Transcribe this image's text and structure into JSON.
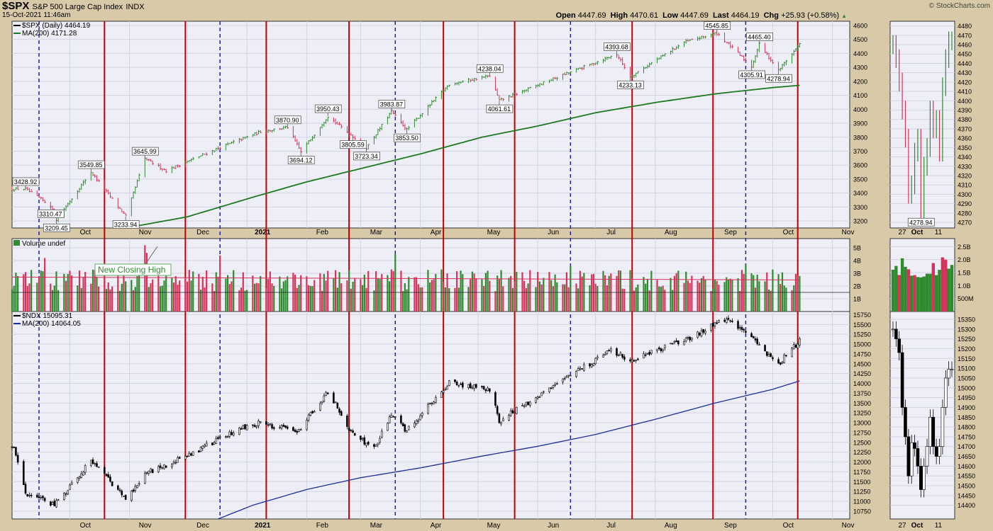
{
  "header": {
    "symbol": "$SPX",
    "description": "S&P 500 Large Cap Index",
    "exchange": "INDX",
    "date": "15-Oct-2021 11:46am",
    "brand": "© StockCharts.com",
    "quote": {
      "open_label": "Open",
      "open": "4447.69",
      "high_label": "High",
      "high": "4470.61",
      "low_label": "Low",
      "low": "4447.69",
      "last_label": "Last",
      "last": "4464.19",
      "chg_label": "Chg",
      "chg": "+25.93 (+0.58%)"
    }
  },
  "colors": {
    "background": "#d8c9a8",
    "panel": "#eeeef7",
    "grid": "#d3d3e6",
    "up": "#2e8b2e",
    "down": "#d6335a",
    "ma_spx": "#1e7a1e",
    "ma_ndx": "#1f2f9a",
    "vline_red": "#c00000",
    "vline_blue": "#1f1fa8"
  },
  "panels": {
    "spx": {
      "legend_symbol": "$SPX (Daily) 4464.19",
      "legend_ma": "MA(200) 4171.28"
    },
    "volume": {
      "legend": "Volume undef",
      "annotation": "New Closing High"
    },
    "ndx": {
      "legend_symbol": "$NDX 15095.31",
      "legend_ma": "MA(200) 14064.05"
    }
  },
  "chart_data": [
    {
      "type": "line",
      "name": "$SPX daily price",
      "x_months": [
        "Oct",
        "Nov",
        "Dec",
        "2021",
        "Feb",
        "Mar",
        "Apr",
        "May",
        "Jun",
        "Jul",
        "Aug",
        "Sep",
        "Oct",
        "Nov"
      ],
      "ylim": [
        3150,
        4630
      ],
      "y_ticks": [
        3200,
        3300,
        3400,
        3500,
        3600,
        3700,
        3800,
        3900,
        4000,
        4100,
        4200,
        4300,
        4400,
        4500,
        4600
      ],
      "series": [
        {
          "name": "$SPX (Daily)",
          "anchors": [
            [
              "2020-09-21",
              3310.47
            ],
            [
              "2020-09-08",
              3428.92
            ],
            [
              "2020-09-24",
              3209.45
            ],
            [
              "2020-10-12",
              3549.85
            ],
            [
              "2020-10-30",
              3233.94
            ],
            [
              "2020-11-09",
              3645.99
            ],
            [
              "2020-11-20",
              3560
            ],
            [
              "2020-12-17",
              3720
            ],
            [
              "2021-01-08",
              3840
            ],
            [
              "2021-01-22",
              3870.9
            ],
            [
              "2021-01-29",
              3694.12
            ],
            [
              "2021-02-12",
              3950.43
            ],
            [
              "2021-03-04",
              3723.34
            ],
            [
              "2021-02-25",
              3805.59
            ],
            [
              "2021-03-17",
              3983.87
            ],
            [
              "2021-03-25",
              3853.5
            ],
            [
              "2021-04-16",
              4180
            ],
            [
              "2021-05-07",
              4238.04
            ],
            [
              "2021-05-12",
              4061.61
            ],
            [
              "2021-06-15",
              4250
            ],
            [
              "2021-07-12",
              4393.68
            ],
            [
              "2021-07-19",
              4233.13
            ],
            [
              "2021-08-16",
              4480
            ],
            [
              "2021-09-02",
              4545.85
            ],
            [
              "2021-09-20",
              4305.91
            ],
            [
              "2021-09-24",
              4465.4
            ],
            [
              "2021-10-04",
              4278.94
            ],
            [
              "2021-10-15",
              4464.19
            ]
          ]
        },
        {
          "name": "MA(200)",
          "anchors": [
            [
              "2020-10-30",
              3150
            ],
            [
              "2020-12-01",
              3230
            ],
            [
              "2021-01-04",
              3370
            ],
            [
              "2021-02-01",
              3480
            ],
            [
              "2021-03-01",
              3575
            ],
            [
              "2021-04-01",
              3680
            ],
            [
              "2021-05-03",
              3800
            ],
            [
              "2021-06-01",
              3880
            ],
            [
              "2021-07-01",
              3975
            ],
            [
              "2021-08-02",
              4050
            ],
            [
              "2021-09-01",
              4110
            ],
            [
              "2021-10-01",
              4155
            ],
            [
              "2021-10-15",
              4171.28
            ]
          ]
        }
      ],
      "annotations": [
        [
          "2020-09-08",
          3428.92,
          "3428.92",
          "above"
        ],
        [
          "2020-09-21",
          3310.47,
          "3310.47",
          "below"
        ],
        [
          "2020-09-24",
          3209.45,
          "3209.45",
          "below"
        ],
        [
          "2020-10-12",
          3549.85,
          "3549.85",
          "above"
        ],
        [
          "2020-10-30",
          3233.94,
          "3233.94",
          "below"
        ],
        [
          "2020-11-09",
          3645.99,
          "3645.99",
          "above"
        ],
        [
          "2021-01-22",
          3870.9,
          "3870.90",
          "above"
        ],
        [
          "2021-01-29",
          3694.12,
          "3694.12",
          "below"
        ],
        [
          "2021-02-12",
          3950.43,
          "3950.43",
          "above"
        ],
        [
          "2021-02-25",
          3805.59,
          "3805.59",
          "below"
        ],
        [
          "2021-03-04",
          3723.34,
          "3723.34",
          "below"
        ],
        [
          "2021-03-17",
          3983.87,
          "3983.87",
          "above"
        ],
        [
          "2021-03-25",
          3853.5,
          "3853.50",
          "below"
        ],
        [
          "2021-05-07",
          4238.04,
          "4238.04",
          "above"
        ],
        [
          "2021-05-12",
          4061.61,
          "4061.61",
          "below"
        ],
        [
          "2021-07-12",
          4393.68,
          "4393.68",
          "above"
        ],
        [
          "2021-07-19",
          4233.13,
          "4233.13",
          "below"
        ],
        [
          "2021-09-02",
          4545.85,
          "4545.85",
          "above"
        ],
        [
          "2021-09-20",
          4305.91,
          "4305.91",
          "below"
        ],
        [
          "2021-09-24",
          4465.4,
          "4465.40",
          "above"
        ],
        [
          "2021-10-04",
          4278.94,
          "4278.94",
          "below"
        ]
      ]
    },
    {
      "type": "bar",
      "name": "Volume",
      "y_ticks": [
        {
          "label": "1B",
          "value": 1000000000
        },
        {
          "label": "2B",
          "value": 2000000000
        },
        {
          "label": "3B",
          "value": 3000000000
        },
        {
          "label": "4B",
          "value": 4000000000
        },
        {
          "label": "5B",
          "value": 5000000000
        }
      ],
      "ylim": [
        0,
        5500000000
      ],
      "average_line": 2700000000,
      "spikes": [
        [
          "2020-09-18",
          4200000000
        ],
        [
          "2020-11-09",
          5200000000
        ],
        [
          "2020-11-10",
          4600000000
        ],
        [
          "2020-12-18",
          4400000000
        ],
        [
          "2021-03-19",
          4500000000
        ],
        [
          "2021-06-18",
          3600000000
        ],
        [
          "2021-09-17",
          3700000000
        ]
      ],
      "typical_range": [
        1600000000,
        3300000000
      ]
    },
    {
      "type": "line",
      "name": "$NDX daily price",
      "ylim": [
        10550,
        15830
      ],
      "y_ticks": [
        10750,
        11000,
        11250,
        11500,
        11750,
        12000,
        12250,
        12500,
        12750,
        13000,
        13250,
        13500,
        13750,
        14000,
        14250,
        14500,
        14750,
        15000,
        15250,
        15500,
        15750
      ],
      "series": [
        {
          "name": "$NDX",
          "anchors": [
            [
              "2020-09-02",
              12400
            ],
            [
              "2020-09-08",
              11200
            ],
            [
              "2020-09-23",
              10900
            ],
            [
              "2020-10-12",
              12050
            ],
            [
              "2020-10-30",
              11050
            ],
            [
              "2020-11-09",
              11700
            ],
            [
              "2020-12-01",
              12150
            ],
            [
              "2020-12-28",
              12850
            ],
            [
              "2021-01-08",
              13000
            ],
            [
              "2021-01-27",
              12750
            ],
            [
              "2021-02-12",
              13800
            ],
            [
              "2021-02-25",
              12700
            ],
            [
              "2021-03-08",
              12350
            ],
            [
              "2021-03-17",
              13200
            ],
            [
              "2021-03-25",
              12800
            ],
            [
              "2021-04-16",
              14000
            ],
            [
              "2021-05-07",
              13850
            ],
            [
              "2021-05-12",
              13050
            ],
            [
              "2021-06-15",
              14100
            ],
            [
              "2021-07-09",
              14850
            ],
            [
              "2021-07-19",
              14600
            ],
            [
              "2021-08-16",
              15100
            ],
            [
              "2021-09-07",
              15650
            ],
            [
              "2021-09-20",
              15150
            ],
            [
              "2021-10-04",
              14500
            ],
            [
              "2021-10-15",
              15095.31
            ]
          ]
        },
        {
          "name": "MA(200)",
          "anchors": [
            [
              "2020-12-17",
              10550
            ],
            [
              "2021-01-04",
              10900
            ],
            [
              "2021-02-01",
              11300
            ],
            [
              "2021-03-01",
              11600
            ],
            [
              "2021-04-01",
              11850
            ],
            [
              "2021-05-03",
              12150
            ],
            [
              "2021-06-01",
              12400
            ],
            [
              "2021-07-01",
              12700
            ],
            [
              "2021-08-02",
              13100
            ],
            [
              "2021-09-01",
              13500
            ],
            [
              "2021-10-01",
              13850
            ],
            [
              "2021-10-15",
              14064.05
            ]
          ]
        }
      ]
    },
    {
      "type": "line",
      "name": "$SPX inset",
      "x_ticks": [
        "27",
        "Oct",
        "11"
      ],
      "y_ticks": [
        4270,
        4280,
        4290,
        4300,
        4310,
        4320,
        4330,
        4340,
        4350,
        4360,
        4370,
        4380,
        4390,
        4400,
        4410,
        4420,
        4430,
        4440,
        4450,
        4460,
        4470,
        4480
      ],
      "ylim": [
        4264,
        4485
      ],
      "annotations": [
        [
          "2021-10-04",
          4278.94,
          "4278.94",
          "below"
        ]
      ]
    },
    {
      "type": "bar",
      "name": "Volume inset",
      "y_ticks": [
        {
          "label": "500M",
          "value": 500000000
        },
        {
          "label": "1.0B",
          "value": 1000000000
        },
        {
          "label": "1.5B",
          "value": 1500000000
        },
        {
          "label": "2.0B",
          "value": 2000000000
        },
        {
          "label": "2.5B",
          "value": 2500000000
        }
      ],
      "ylim": [
        0,
        2700000000
      ]
    },
    {
      "type": "line",
      "name": "$NDX inset",
      "ylim": [
        14330,
        15390
      ],
      "y_ticks": [
        14400,
        14450,
        14500,
        14550,
        14600,
        14650,
        14700,
        14750,
        14800,
        14850,
        14900,
        14950,
        15000,
        15050,
        15100,
        15150,
        15200,
        15250,
        15300,
        15350
      ]
    }
  ],
  "vertical_markers": {
    "red": [
      "2020-10-19",
      "2020-11-30",
      "2021-01-11",
      "2021-02-23",
      "2021-04-13",
      "2021-05-20",
      "2021-07-20",
      "2021-08-31",
      "2021-10-14"
    ],
    "blue": [
      "2020-09-15",
      "2020-12-18",
      "2021-03-19",
      "2021-06-18",
      "2021-09-17"
    ]
  }
}
